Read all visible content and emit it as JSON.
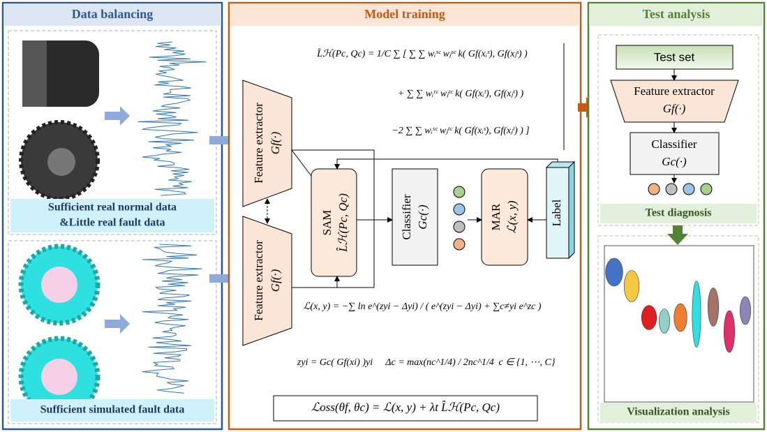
{
  "data_balancing": {
    "title": "Data balancing",
    "real_caption": [
      "Sufficient real normal data",
      "&Little real fault data"
    ],
    "sim_caption": "Sufficient simulated fault data"
  },
  "model_training": {
    "title": "Model training",
    "feature_extractor": {
      "label": "Feature extractor",
      "symbol": "Gf(·)"
    },
    "sam": {
      "label": "SAM",
      "symbol": "L̂ℋ(Pc, Qc)"
    },
    "classifier": {
      "label": "Classifier",
      "symbol": "Gc(·)"
    },
    "mar": {
      "label": "MAR",
      "symbol": "ℒ(x, y)"
    },
    "label_box": "Label",
    "formulas": [
      "L̂ℋ(Pc, Qc) = 1/C ∑ [ ∑ ∑ wᵢˢᶜ wⱼˢᶜ k( Gf(xᵢˢ), Gf(xⱼˢ) )",
      "+ ∑ ∑ wᵢᵗᶜ wⱼᵗᶜ k( Gf(xᵢᵗ), Gf(xⱼᵗ) )",
      "−2 ∑ ∑ wᵢˢᶜ wⱼᵗᶜ k( Gf(xᵢˢ), Gf(xⱼᵗ) ) ]",
      "ℒ(x, y) = −∑ ln e^(zyi − Δyi) / ( e^(zyi − Δyi) + ∑c≠yi e^zc )",
      "zyi = Gc( Gf(xi) )yi",
      "Δc = max(nc^1/4) / 2nc^1/4",
      "c ∈ {1, ⋯, C}"
    ],
    "loss": "ℒoss(θf, θc) = ℒ(x, y) + λt L̂ℋ(Pc, Qc)"
  },
  "test_analysis": {
    "title": "Test analysis",
    "test_set": "Test set",
    "feature_extractor": {
      "label": "Feature extractor",
      "symbol": "Gf(·)"
    },
    "classifier": {
      "label": "Classifier",
      "symbol": "Gc(·)"
    },
    "diagnosis": "Test diagnosis",
    "visualization": "Visualization analysis"
  }
}
